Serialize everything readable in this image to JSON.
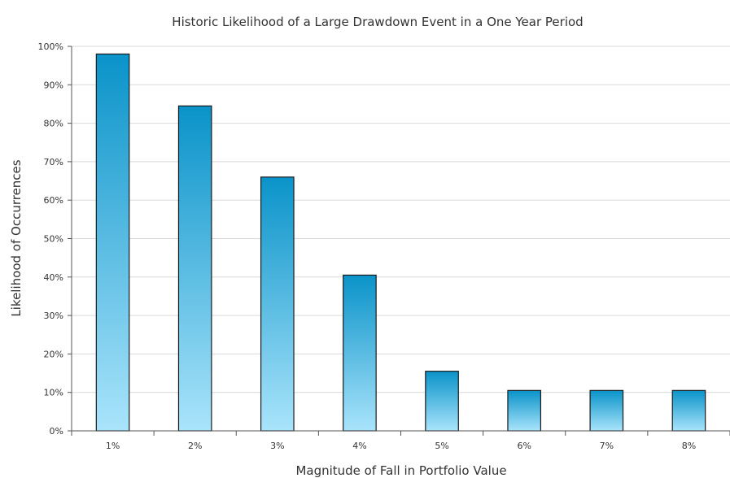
{
  "chart_data": {
    "type": "bar",
    "title": "Historic Likelihood of a Large Drawdown Event in a One Year Period",
    "xlabel": "Magnitude of Fall in Portfolio Value",
    "ylabel": "Likelihood of Occurrences",
    "categories": [
      "1%",
      "2%",
      "3%",
      "4%",
      "5%",
      "6%",
      "7%",
      "8%"
    ],
    "values": [
      98,
      84.5,
      66,
      40.5,
      15.5,
      10.5,
      10.5,
      10.5
    ],
    "ylim": [
      0,
      100
    ],
    "yticks": [
      "0%",
      "10%",
      "20%",
      "30%",
      "40%",
      "50%",
      "60%",
      "70%",
      "80%",
      "90%",
      "100%"
    ],
    "grid": true,
    "legend": "none",
    "colors": {
      "bar_top": "#0a93c9",
      "bar_bottom": "#a9e4fb",
      "bar_outline": "#1a1a1a",
      "grid": "#d9d9d9"
    }
  }
}
